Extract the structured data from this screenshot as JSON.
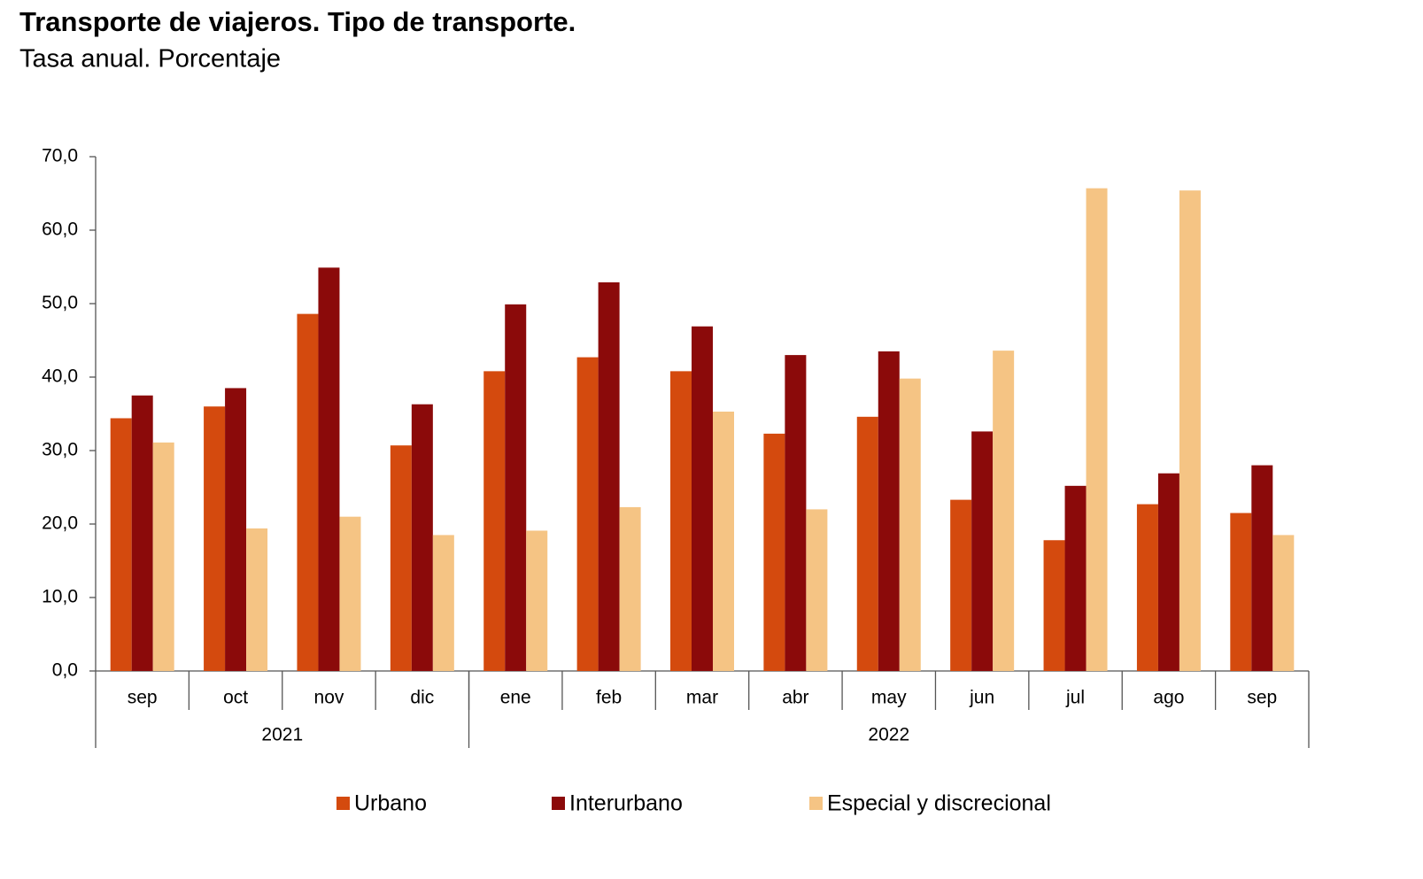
{
  "chart_data": {
    "type": "bar",
    "title": "Transporte de viajeros. Tipo de transporte.",
    "subtitle": "Tasa anual. Porcentaje",
    "categories": [
      "sep",
      "oct",
      "nov",
      "dic",
      "ene",
      "feb",
      "mar",
      "abr",
      "may",
      "jun",
      "jul",
      "ago",
      "sep"
    ],
    "category_groups": [
      {
        "label": "2021",
        "size": 4
      },
      {
        "label": "2022",
        "size": 9
      }
    ],
    "series": [
      {
        "name": "Urbano",
        "color": "#d44a0e",
        "values": [
          34.4,
          36.0,
          48.6,
          30.7,
          40.8,
          42.7,
          40.8,
          32.3,
          34.6,
          23.3,
          17.8,
          22.7,
          21.5
        ]
      },
      {
        "name": "Interurbano",
        "color": "#8b0a0a",
        "values": [
          37.5,
          38.5,
          54.9,
          36.3,
          49.9,
          52.9,
          46.9,
          43.0,
          43.5,
          32.6,
          25.2,
          26.9,
          28.0
        ]
      },
      {
        "name": "Especial y discrecional",
        "color": "#f5c484",
        "values": [
          31.1,
          19.4,
          21.0,
          18.5,
          19.1,
          22.3,
          35.3,
          22.0,
          39.8,
          43.6,
          65.7,
          65.4,
          18.5
        ]
      }
    ],
    "ylim": [
      0,
      70
    ],
    "yticks": [
      {
        "value": 0,
        "label": "0,0"
      },
      {
        "value": 10,
        "label": "10,0"
      },
      {
        "value": 20,
        "label": "20,0"
      },
      {
        "value": 30,
        "label": "30,0"
      },
      {
        "value": 40,
        "label": "40,0"
      },
      {
        "value": 50,
        "label": "50,0"
      },
      {
        "value": 60,
        "label": "60,0"
      },
      {
        "value": 70,
        "label": "70,0"
      }
    ],
    "grid": false,
    "legend": "bottom"
  }
}
